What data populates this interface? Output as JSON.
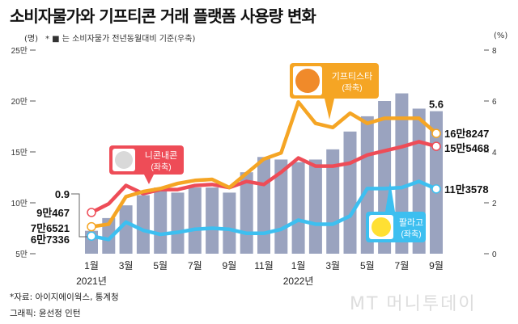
{
  "title": "소비자물가와 기프티콘 거래 플랫폼 사용량 변화",
  "left_unit": "(명)",
  "right_unit": "(%)",
  "note": "* ■ 는 소비자물가 전년동월대비 기준(우축)",
  "source": "*자료: 아이지에이웍스, 통계청",
  "credit": "그래픽: 윤선정 인턴",
  "logo": "MT 머니투데이",
  "colors": {
    "bars": "#9aa3bf",
    "giftistar": "#f5a524",
    "niconnaecon": "#ee4c57",
    "palago": "#3dbff0"
  },
  "chart_data": {
    "type": "bar+line",
    "categories": [
      "2021-01",
      "2021-02",
      "2021-03",
      "2021-04",
      "2021-05",
      "2021-06",
      "2021-07",
      "2021-08",
      "2021-09",
      "2021-10",
      "2021-11",
      "2021-12",
      "2022-01",
      "2022-02",
      "2022-03",
      "2022-04",
      "2022-05",
      "2022-06",
      "2022-07",
      "2022-08",
      "2022-09"
    ],
    "x_tick_labels": [
      {
        "i": 0,
        "label": "1월"
      },
      {
        "i": 2,
        "label": "3월"
      },
      {
        "i": 4,
        "label": "5월"
      },
      {
        "i": 6,
        "label": "7월"
      },
      {
        "i": 8,
        "label": "9월"
      },
      {
        "i": 10,
        "label": "11월"
      },
      {
        "i": 12,
        "label": "1월"
      },
      {
        "i": 14,
        "label": "3월"
      },
      {
        "i": 16,
        "label": "5월"
      },
      {
        "i": 18,
        "label": "7월"
      },
      {
        "i": 20,
        "label": "9월"
      }
    ],
    "year_labels": [
      {
        "i": 0,
        "label": "2021년"
      },
      {
        "i": 12,
        "label": "2022년"
      }
    ],
    "left_axis": {
      "unit": "명 (만)",
      "range": [
        5,
        25
      ],
      "ticks": [
        {
          "v": 25,
          "label": "25만"
        },
        {
          "v": 20,
          "label": "20만"
        },
        {
          "v": 15,
          "label": "15만"
        },
        {
          "v": 10,
          "label": "10만"
        },
        {
          "v": 5,
          "label": "5만"
        }
      ]
    },
    "right_axis": {
      "unit": "%",
      "range": [
        0,
        8
      ],
      "ticks": [
        {
          "v": 8,
          "label": "8"
        },
        {
          "v": 6,
          "label": "6"
        },
        {
          "v": 4,
          "label": "4"
        },
        {
          "v": 2,
          "label": "2"
        },
        {
          "v": 0,
          "label": "0"
        }
      ]
    },
    "bars": {
      "axis": "right",
      "values": [
        0.9,
        1.4,
        1.9,
        2.3,
        2.6,
        2.4,
        2.6,
        2.6,
        2.4,
        3.2,
        3.8,
        3.7,
        3.6,
        3.7,
        4.1,
        4.8,
        5.4,
        6.0,
        6.3,
        5.7,
        5.6
      ]
    },
    "series": [
      {
        "name": "기프티스타",
        "axis_note": "(좌축)",
        "color": "#f5a524",
        "values": [
          7.65,
          7.9,
          10.6,
          11.1,
          11.4,
          11.9,
          12.2,
          12.3,
          11.5,
          12.9,
          14.3,
          14.9,
          19.9,
          17.8,
          17.4,
          18.8,
          17.8,
          18.3,
          18.3,
          18.3,
          16.82
        ]
      },
      {
        "name": "니콘내콘",
        "axis_note": "(좌축)",
        "color": "#ee4c57",
        "values": [
          9.05,
          9.9,
          11.7,
          10.9,
          11.3,
          11.3,
          11.7,
          11.8,
          11.5,
          12.1,
          11.8,
          13.0,
          14.4,
          13.6,
          13.6,
          13.9,
          14.7,
          15.1,
          15.5,
          16.0,
          15.55
        ]
      },
      {
        "name": "팔라고",
        "axis_note": "(좌축)",
        "color": "#3dbff0",
        "values": [
          6.73,
          6.4,
          8.1,
          7.3,
          6.9,
          7.1,
          7.4,
          7.5,
          7.4,
          7.0,
          7.0,
          7.4,
          8.3,
          7.9,
          7.9,
          8.7,
          11.4,
          11.4,
          11.5,
          12.1,
          11.36
        ]
      }
    ],
    "start_labels": {
      "cpi": "0.9",
      "niconnaecon": "9만467",
      "giftistar": "7만6521",
      "palago": "6만7336"
    },
    "end_labels": {
      "cpi": "5.6",
      "giftistar": "16만8247",
      "niconnaecon": "15만5468",
      "palago": "11만3578"
    },
    "grid": false
  }
}
